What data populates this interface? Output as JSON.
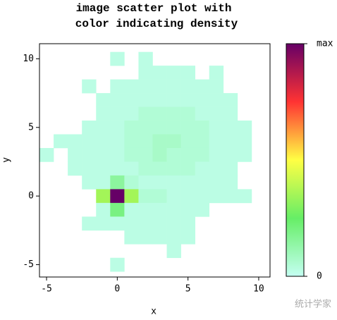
{
  "chart_data": {
    "type": "heatmap",
    "title": [
      "image scatter plot with",
      "color indicating density"
    ],
    "xlabel": "x",
    "ylabel": "y",
    "xbins": [
      -5.5,
      -4.5,
      -3.5,
      -2.5,
      -1.5,
      -0.5,
      0.5,
      1.5,
      2.5,
      3.5,
      4.5,
      5.5,
      6.5,
      7.5,
      8.5,
      9.5,
      10.5
    ],
    "ybins": [
      10.5,
      9.5,
      8.5,
      7.5,
      6.5,
      5.5,
      4.5,
      3.5,
      2.5,
      1.5,
      0.5,
      -0.5,
      -1.5,
      -2.5,
      -3.5,
      -4.5,
      -5.5
    ],
    "z": [
      [
        null,
        null,
        null,
        null,
        null,
        1,
        null,
        1,
        null,
        null,
        null,
        null,
        null,
        null,
        null,
        null
      ],
      [
        null,
        null,
        null,
        null,
        null,
        null,
        null,
        1,
        1,
        1,
        1,
        null,
        1,
        null,
        null,
        null
      ],
      [
        null,
        null,
        null,
        1,
        null,
        1,
        1,
        1,
        1,
        1,
        1,
        1,
        1,
        null,
        null,
        null
      ],
      [
        null,
        null,
        null,
        null,
        1,
        1,
        1,
        1,
        1,
        1,
        1,
        1,
        1,
        1,
        null,
        null
      ],
      [
        null,
        null,
        null,
        null,
        1,
        1,
        1,
        2,
        2,
        2,
        2,
        1,
        1,
        1,
        null,
        null
      ],
      [
        null,
        null,
        null,
        1,
        1,
        1,
        2,
        2,
        2,
        2,
        2,
        2,
        1,
        1,
        1,
        null
      ],
      [
        null,
        1,
        1,
        1,
        1,
        1,
        2,
        2,
        3,
        3,
        2,
        2,
        1,
        1,
        1,
        null
      ],
      [
        1,
        null,
        1,
        1,
        1,
        1,
        2,
        2,
        3,
        2,
        2,
        2,
        1,
        1,
        1,
        null
      ],
      [
        null,
        null,
        1,
        1,
        1,
        1,
        1,
        2,
        2,
        2,
        2,
        1,
        1,
        1,
        null,
        null
      ],
      [
        null,
        null,
        null,
        1,
        1,
        6,
        2,
        1,
        1,
        1,
        1,
        1,
        1,
        1,
        null,
        null
      ],
      [
        null,
        null,
        null,
        null,
        14,
        40,
        14,
        2,
        2,
        1,
        1,
        1,
        1,
        1,
        1,
        null
      ],
      [
        null,
        null,
        null,
        null,
        1,
        8,
        1,
        1,
        1,
        1,
        1,
        1,
        null,
        null,
        null,
        null
      ],
      [
        null,
        null,
        null,
        1,
        1,
        1,
        1,
        1,
        1,
        1,
        1,
        null,
        null,
        null,
        null,
        null
      ],
      [
        null,
        null,
        null,
        null,
        null,
        null,
        1,
        1,
        1,
        1,
        1,
        null,
        null,
        null,
        null,
        null
      ],
      [
        null,
        null,
        null,
        null,
        null,
        null,
        null,
        null,
        null,
        1,
        null,
        null,
        null,
        null,
        null,
        null
      ],
      [
        null,
        null,
        null,
        null,
        null,
        1,
        null,
        null,
        null,
        null,
        null,
        null,
        null,
        null,
        null,
        null
      ]
    ],
    "xlim": [
      -5.5,
      10.8
    ],
    "xticks": [
      -5,
      0,
      5,
      10
    ],
    "ylim": [
      -5.9,
      11.1
    ],
    "yticks": [
      -5,
      0,
      5,
      10
    ],
    "clim": [
      0,
      40
    ],
    "cticks": [
      {
        "value": 40,
        "label": "max"
      },
      0
    ],
    "colorscale": [
      "#c4fff2",
      "#66ee66",
      "#ffff44",
      "#ff3333",
      "#660066"
    ],
    "watermark": "统计学家"
  }
}
